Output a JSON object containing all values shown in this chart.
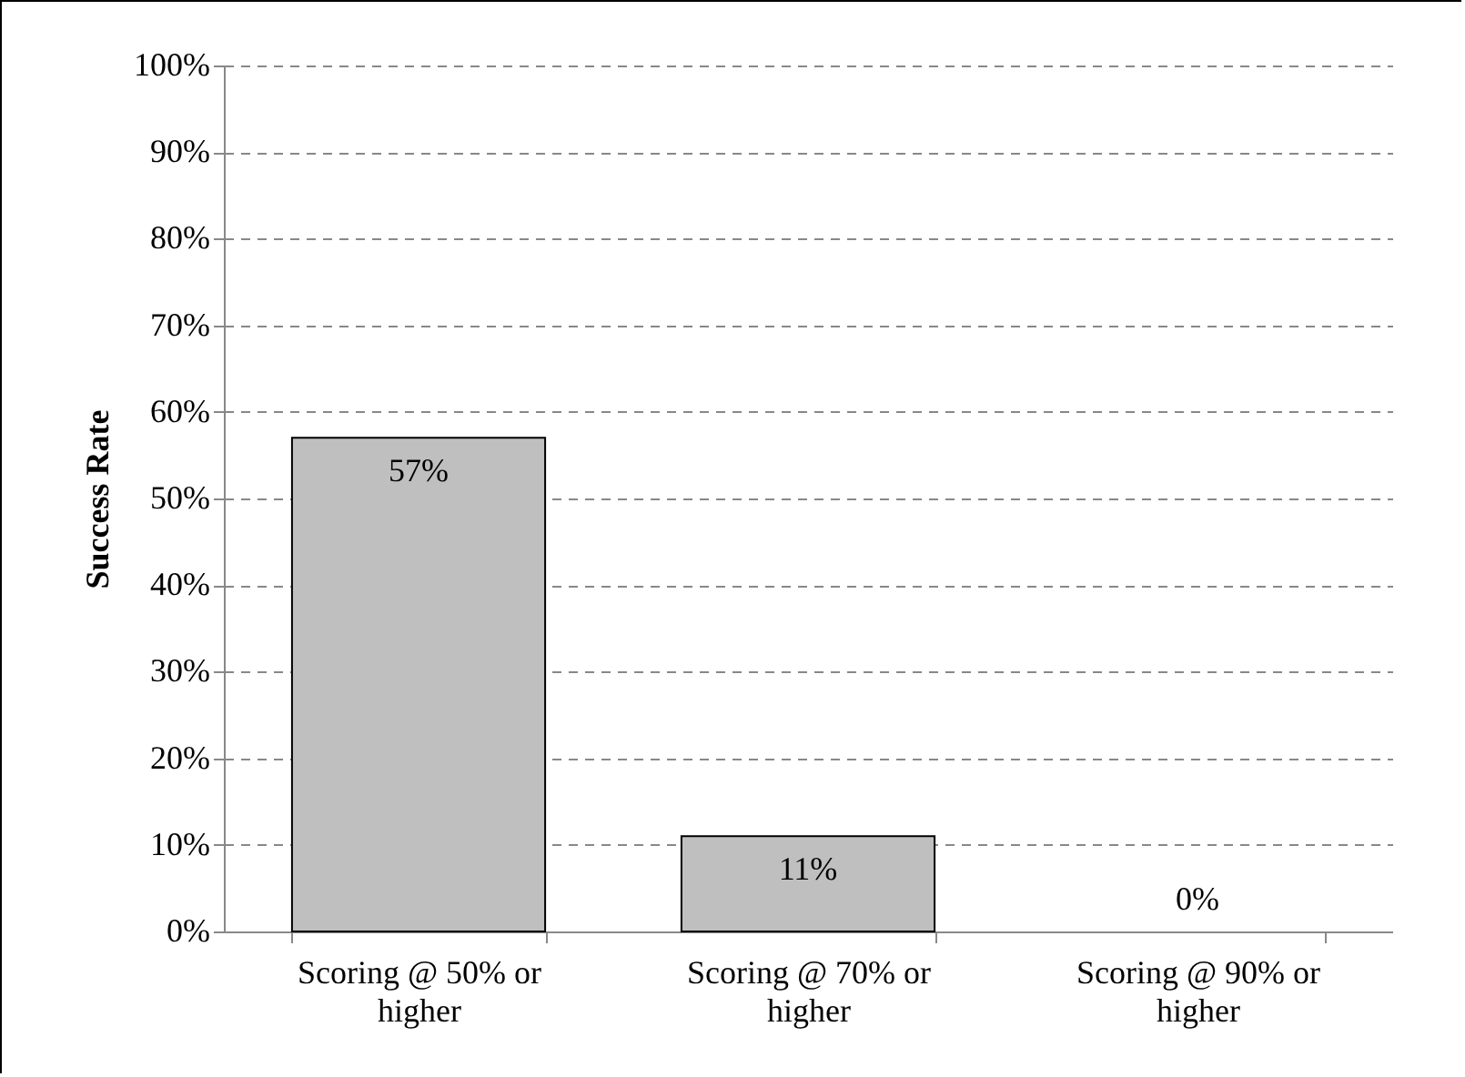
{
  "chart_data": {
    "type": "bar",
    "ylabel": "Success Rate",
    "categories": [
      "Scoring @ 50% or higher",
      "Scoring @ 70% or higher",
      "Scoring @ 90% or higher"
    ],
    "values": [
      57,
      11,
      0
    ],
    "value_labels": [
      "57%",
      "11%",
      "0%"
    ],
    "color": "#bfbfbf",
    "ylim": [
      0,
      100
    ],
    "yticks": [
      {
        "value": 0,
        "label": "0%"
      },
      {
        "value": 10,
        "label": "10%"
      },
      {
        "value": 20,
        "label": "20%"
      },
      {
        "value": 30,
        "label": "30%"
      },
      {
        "value": 40,
        "label": "40%"
      },
      {
        "value": 50,
        "label": "50%"
      },
      {
        "value": 60,
        "label": "60%"
      },
      {
        "value": 70,
        "label": "70%"
      },
      {
        "value": 80,
        "label": "80%"
      },
      {
        "value": 90,
        "label": "90%"
      },
      {
        "value": 100,
        "label": "100%"
      }
    ],
    "grid": "y"
  }
}
